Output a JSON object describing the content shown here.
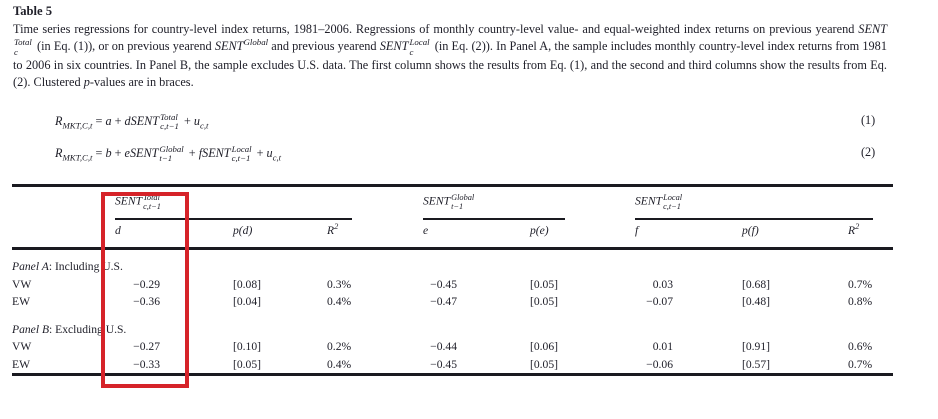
{
  "title": "Table 5",
  "description": [
    {
      "t": "Time series regressions for country-level index returns, 1981–2006. Regressions of monthly country-level value- and equal-weighted index returns on previous yearend "
    },
    {
      "t": "SENT",
      "i": true,
      "sup": "Total",
      "sub": "c"
    },
    {
      "t": " (in Eq. (1)), or on previous yearend "
    },
    {
      "t": "SENT",
      "i": true,
      "sup": "Global"
    },
    {
      "t": " and previous yearend "
    },
    {
      "t": "SENT",
      "i": true,
      "sup": "Local",
      "sub": "c"
    },
    {
      "t": " (in Eq. (2)). In Panel A, the sample includes monthly country-level index returns from 1981 to 2006 in six countries. In Panel B, the sample excludes U.S. data. The first column shows the results from Eq. (1), and the second and third columns show the results from Eq. (2). Clustered "
    },
    {
      "t": "p",
      "i": true
    },
    {
      "t": "-values are in braces."
    }
  ],
  "equations": [
    {
      "number": "(1)",
      "formula": [
        {
          "t": "R",
          "i": true,
          "sub": "MKT,C,t"
        },
        {
          "t": " = "
        },
        {
          "t": "a",
          "i": true
        },
        {
          "t": " + "
        },
        {
          "t": "dSENT",
          "i": true,
          "sup": "Total",
          "sub": "c,t−1"
        },
        {
          "t": " + "
        },
        {
          "t": "u",
          "i": true,
          "sub": "c,t"
        }
      ]
    },
    {
      "number": "(2)",
      "formula": [
        {
          "t": "R",
          "i": true,
          "sub": "MKT,C,t"
        },
        {
          "t": " = "
        },
        {
          "t": "b",
          "i": true
        },
        {
          "t": " + "
        },
        {
          "t": "eSENT",
          "i": true,
          "sup": "Global",
          "sub": "t−1"
        },
        {
          "t": " + "
        },
        {
          "t": "fSENT",
          "i": true,
          "sup": "Local",
          "sub": "c,t−1"
        },
        {
          "t": " + "
        },
        {
          "t": "u",
          "i": true,
          "sub": "c,t"
        }
      ]
    }
  ],
  "table": {
    "groups": [
      {
        "label": [
          {
            "t": "SENT",
            "i": true,
            "sup": "Total",
            "sub": "c,t−1"
          }
        ]
      },
      {
        "label": [
          {
            "t": "SENT",
            "i": true,
            "sup": "Global",
            "sub": "t−1"
          }
        ]
      },
      {
        "label": [
          {
            "t": "SENT",
            "i": true,
            "sup": "Local",
            "sub": "c,t−1"
          }
        ]
      }
    ],
    "columns": [
      [
        {
          "t": "d",
          "i": true
        }
      ],
      [
        {
          "t": "p(d)",
          "i": true
        }
      ],
      [
        {
          "t": "R",
          "i": true,
          "sup": "2"
        }
      ],
      [
        {
          "t": "e",
          "i": true
        }
      ],
      [
        {
          "t": "p(e)",
          "i": true
        }
      ],
      [
        {
          "t": "f",
          "i": true
        }
      ],
      [
        {
          "t": "p(f)",
          "i": true
        }
      ],
      [
        {
          "t": "R",
          "i": true,
          "sup": "2"
        }
      ]
    ],
    "sections": [
      {
        "label": [
          {
            "t": "Panel A",
            "i": true
          },
          {
            "t": ": Including U.S."
          }
        ],
        "rows": [
          {
            "label": "VW",
            "values": [
              "−0.29",
              "[0.08]",
              "0.3%",
              "−0.45",
              "[0.05]",
              "0.03",
              "[0.68]",
              "0.7%"
            ]
          },
          {
            "label": "EW",
            "values": [
              "−0.36",
              "[0.04]",
              "0.4%",
              "−0.47",
              "[0.05]",
              "−0.07",
              "[0.48]",
              "0.8%"
            ]
          }
        ]
      },
      {
        "label": [
          {
            "t": "Panel B",
            "i": true
          },
          {
            "t": ": Excluding U.S."
          }
        ],
        "rows": [
          {
            "label": "VW",
            "values": [
              "−0.27",
              "[0.10]",
              "0.2%",
              "−0.44",
              "[0.06]",
              "0.01",
              "[0.91]",
              "0.6%"
            ]
          },
          {
            "label": "EW",
            "values": [
              "−0.33",
              "[0.05]",
              "0.4%",
              "−0.45",
              "[0.05]",
              "−0.06",
              "[0.57]",
              "0.7%"
            ]
          }
        ]
      }
    ]
  },
  "annotation": {
    "color": "#d62329"
  }
}
